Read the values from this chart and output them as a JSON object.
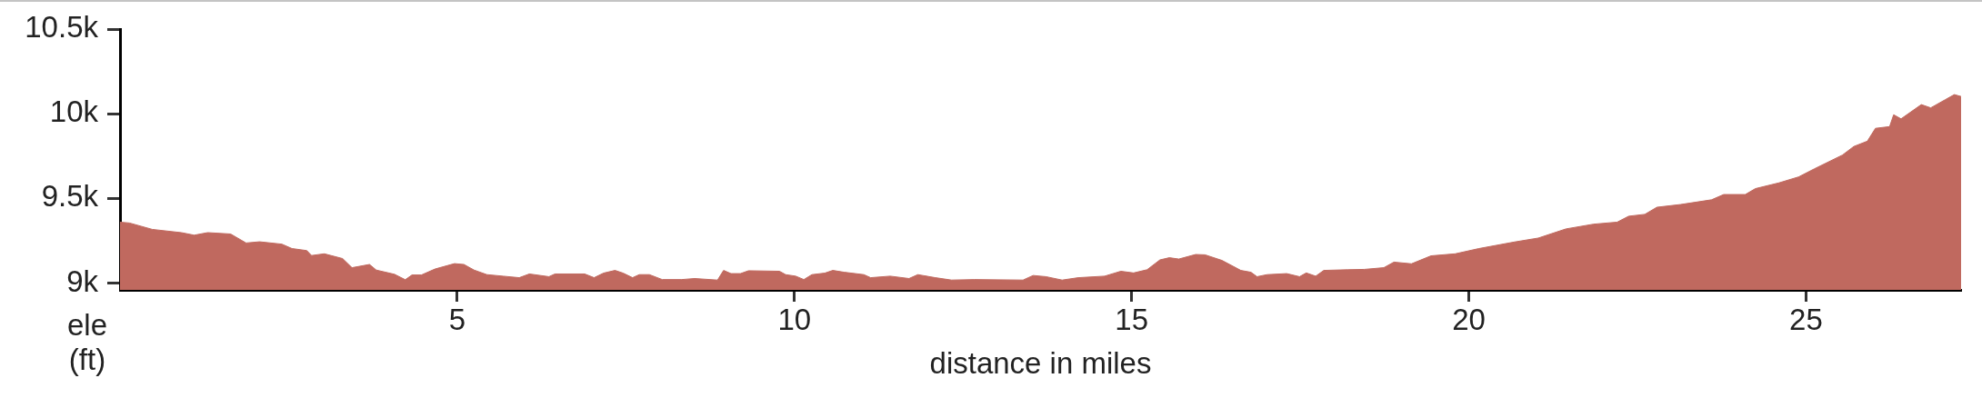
{
  "chart_data": {
    "type": "area",
    "xlabel": "distance in miles",
    "ylabel": "ele (ft)",
    "color": "#c0695f",
    "marker": "none",
    "x": [
      0,
      0.14,
      0.48,
      0.91,
      1.1,
      1.3,
      1.64,
      1.87,
      2.07,
      2.4,
      2.55,
      2.77,
      2.84,
      3.03,
      3.3,
      3.44,
      3.7,
      3.8,
      4.07,
      4.23,
      4.33,
      4.47,
      4.67,
      4.96,
      5.1,
      5.25,
      5.44,
      5.68,
      5.92,
      6.07,
      6.36,
      6.45,
      6.89,
      7.03,
      7.17,
      7.34,
      7.46,
      7.6,
      7.7,
      7.85,
      8.04,
      8.33,
      8.52,
      8.86,
      8.95,
      9.06,
      9.2,
      9.32,
      9.78,
      9.87,
      10.02,
      10.14,
      10.26,
      10.45,
      10.57,
      10.74,
      11.03,
      11.13,
      11.42,
      11.7,
      11.83,
      12.09,
      12.33,
      12.67,
      13.39,
      13.54,
      13.73,
      13.97,
      14.21,
      14.6,
      14.84,
      15.03,
      15.23,
      15.42,
      15.56,
      15.7,
      15.95,
      16.09,
      16.34,
      16.62,
      16.77,
      16.86,
      17.01,
      17.3,
      17.49,
      17.59,
      17.73,
      17.85,
      18.21,
      18.45,
      18.74,
      18.89,
      19.15,
      19.44,
      19.8,
      20.15,
      20.68,
      21.03,
      21.44,
      21.85,
      22.2,
      22.37,
      22.61,
      22.79,
      23.14,
      23.6,
      23.78,
      24.1,
      24.25,
      24.6,
      24.89,
      25.12,
      25.54,
      25.71,
      25.91,
      26.03,
      26.24,
      26.3,
      26.41,
      26.71,
      26.85,
      27.06,
      27.2,
      27.3
    ],
    "values": [
      9360,
      9355,
      9317,
      9298,
      9283,
      9298,
      9290,
      9237,
      9244,
      9230,
      9204,
      9192,
      9163,
      9173,
      9145,
      9091,
      9110,
      9077,
      9052,
      9020,
      9048,
      9048,
      9083,
      9115,
      9110,
      9077,
      9050,
      9041,
      9032,
      9054,
      9038,
      9054,
      9054,
      9032,
      9059,
      9075,
      9059,
      9032,
      9050,
      9050,
      9021,
      9021,
      9027,
      9018,
      9075,
      9056,
      9056,
      9073,
      9070,
      9050,
      9041,
      9021,
      9050,
      9059,
      9075,
      9064,
      9050,
      9032,
      9041,
      9027,
      9050,
      9032,
      9018,
      9021,
      9018,
      9045,
      9038,
      9018,
      9032,
      9041,
      9070,
      9060,
      9079,
      9137,
      9150,
      9142,
      9169,
      9167,
      9134,
      9075,
      9064,
      9038,
      9050,
      9056,
      9038,
      9060,
      9041,
      9075,
      9079,
      9081,
      9091,
      9124,
      9114,
      9161,
      9173,
      9204,
      9243,
      9266,
      9320,
      9348,
      9360,
      9395,
      9406,
      9448,
      9464,
      9492,
      9523,
      9523,
      9558,
      9592,
      9627,
      9674,
      9756,
      9807,
      9838,
      9914,
      9924,
      9994,
      9970,
      10054,
      10035,
      10082,
      10113,
      10102
    ],
    "xlim": [
      0,
      27.3
    ],
    "xticks": [
      5,
      10,
      15,
      20,
      25
    ],
    "ylim": [
      8960,
      10500
    ],
    "yticks": [
      {
        "value": 9000,
        "label": "9k"
      },
      {
        "value": 9500,
        "label": "9.5k"
      },
      {
        "value": 10000,
        "label": "10k"
      },
      {
        "value": 10500,
        "label": "10.5k"
      }
    ]
  }
}
